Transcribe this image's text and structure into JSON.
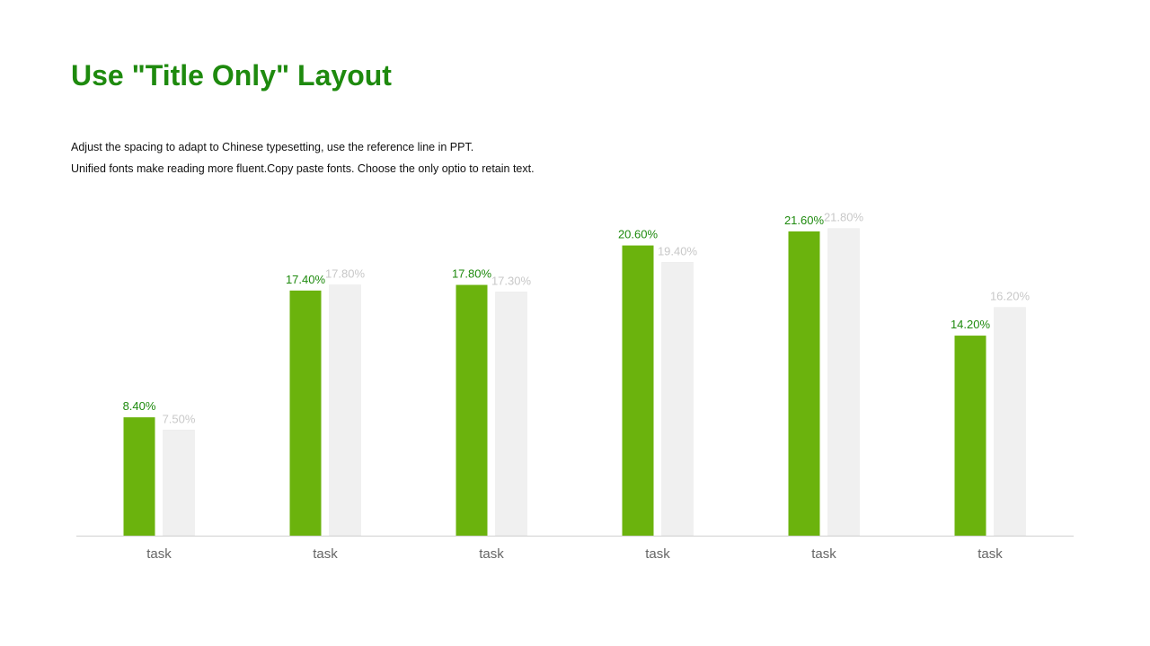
{
  "slide": {
    "title": "Use \"Title Only\" Layout",
    "description_lines": [
      "Adjust the spacing to adapt to Chinese typesetting, use the reference line in PPT.",
      "Unified fonts make reading more fluent.Copy paste fonts. Choose the only optio to retain text."
    ]
  },
  "colors": {
    "title": "#1e8a0e",
    "series_primary": "#6bb30d",
    "series_primary_label": "#1e8a0e",
    "series_secondary": "#f0f0f0",
    "series_secondary_label": "#c8c8c8",
    "axis": "#d0d0d0"
  },
  "chart_data": {
    "type": "bar",
    "categories": [
      "task",
      "task",
      "task",
      "task",
      "task",
      "task"
    ],
    "series": [
      {
        "values": [
          8.4,
          17.4,
          17.8,
          20.6,
          21.6,
          14.2
        ],
        "labels": [
          "8.40%",
          "17.40%",
          "17.80%",
          "20.60%",
          "21.60%",
          "14.20%"
        ]
      },
      {
        "values": [
          7.5,
          17.8,
          17.3,
          19.4,
          21.8,
          16.2
        ],
        "labels": [
          "7.50%",
          "17.80%",
          "17.30%",
          "19.40%",
          "21.80%",
          "16.20%"
        ]
      }
    ],
    "ylim": [
      0,
      24
    ],
    "grid": false,
    "legend": "none"
  }
}
